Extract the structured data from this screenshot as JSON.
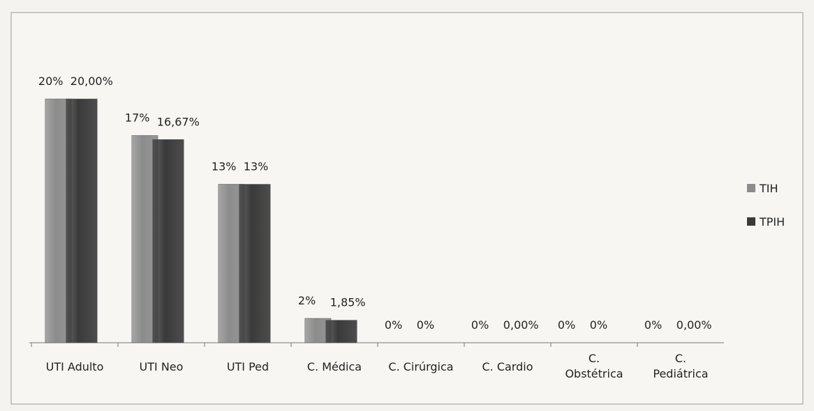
{
  "chart_data": {
    "type": "bar",
    "categories": [
      "UTI Adulto",
      "UTI Neo",
      "UTI Ped",
      "C. Médica",
      "C. Cirúrgica",
      "C. Cardio",
      "C. Obstétrica",
      "C. Pediátrica"
    ],
    "series": [
      {
        "name": "TIH",
        "color": "#8c8c8c",
        "values": [
          20,
          17,
          13,
          2,
          0,
          0,
          0,
          0
        ],
        "value_labels": [
          "20%",
          "17%",
          "13%",
          "2%",
          "0%",
          "0%",
          "0%",
          "0%"
        ]
      },
      {
        "name": "TPIH",
        "color": "#3a3a3a",
        "values": [
          20,
          16.67,
          13,
          1.85,
          0,
          0,
          0,
          0
        ],
        "value_labels": [
          "20,00%",
          "16,67%",
          "13%",
          "1,85%",
          "0%",
          "0,00%",
          "0%",
          "0,00%"
        ]
      }
    ],
    "legend": "right"
  }
}
